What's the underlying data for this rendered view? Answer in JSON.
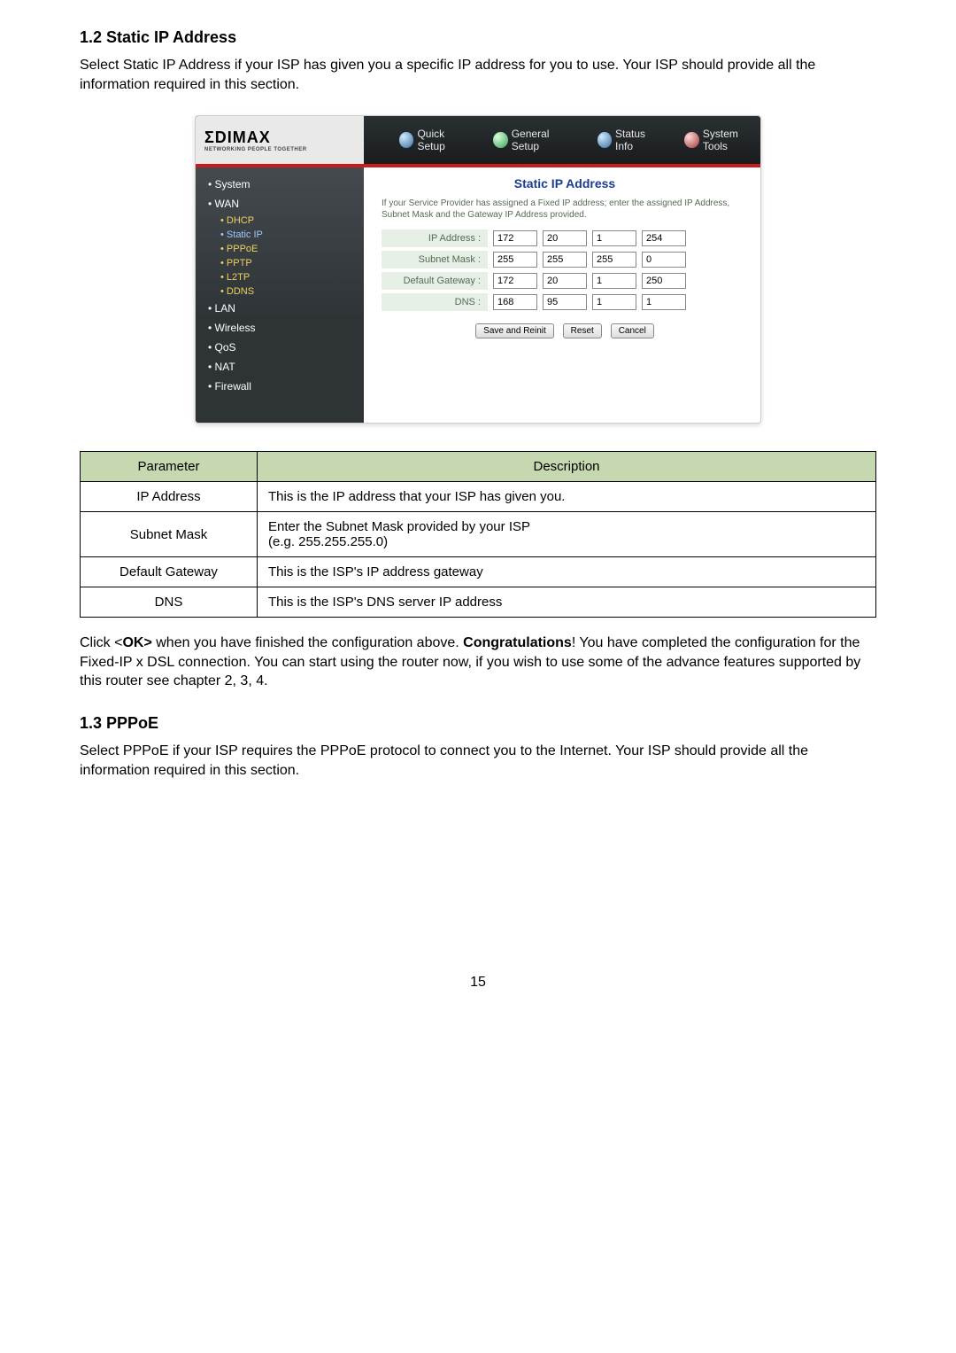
{
  "section12": {
    "heading": "1.2 Static IP Address",
    "intro": "Select Static IP Address if your ISP has given you a specific IP address for you to use. Your ISP should provide all the information required in this section."
  },
  "screenshot": {
    "logo_text": "ΣDIMAX",
    "logo_sub": "NETWORKING PEOPLE TOGETHER",
    "nav_quick": "Quick Setup",
    "nav_general": "General Setup",
    "nav_status": "Status Info",
    "nav_tools": "System Tools",
    "side_system": "System",
    "side_wan": "WAN",
    "side_dhcp": "DHCP",
    "side_staticip": "Static IP",
    "side_pppoe": "PPPoE",
    "side_pptp": "PPTP",
    "side_l2tp": "L2TP",
    "side_ddns": "DDNS",
    "side_lan": "LAN",
    "side_wireless": "Wireless",
    "side_qos": "QoS",
    "side_nat": "NAT",
    "side_firewall": "Firewall",
    "content_title": "Static IP Address",
    "content_note": "If your Service Provider has assigned a Fixed IP address; enter the assigned IP Address, Subnet Mask and the Gateway IP Address provided.",
    "form": {
      "ip_label": "IP Address :",
      "ip": [
        "172",
        "20",
        "1",
        "254"
      ],
      "mask_label": "Subnet Mask :",
      "mask": [
        "255",
        "255",
        "255",
        "0"
      ],
      "gw_label": "Default Gateway :",
      "gw": [
        "172",
        "20",
        "1",
        "250"
      ],
      "dns_label": "DNS :",
      "dns": [
        "168",
        "95",
        "1",
        "1"
      ]
    },
    "btn_save": "Save and Reinit",
    "btn_reset": "Reset",
    "btn_cancel": "Cancel"
  },
  "param_table": {
    "head_param": "Parameter",
    "head_desc": "Description",
    "rows": [
      {
        "p": "IP Address",
        "d": "This is the IP address that your ISP has given you."
      },
      {
        "p": "Subnet Mask",
        "d": "Enter the Subnet Mask provided by your ISP\n(e.g. 255.255.255.0)"
      },
      {
        "p": "Default Gateway",
        "d": "This is the ISP's IP address gateway"
      },
      {
        "p": "DNS",
        "d": "This is the ISP's DNS server IP address"
      }
    ]
  },
  "after12_html": "Click <<b>OK></b> when you have finished the configuration above. <b>Congratulations</b>! You have completed the configuration for the Fixed-IP x DSL connection. You can start using the router now, if you wish to use some of the advance features supported by this router see chapter 2, 3, 4.",
  "section13": {
    "heading": "1.3 PPPoE",
    "intro": "Select PPPoE if your ISP requires the PPPoE protocol to connect you to the Internet. Your ISP should provide all the information required in this section."
  },
  "page_number": "15"
}
